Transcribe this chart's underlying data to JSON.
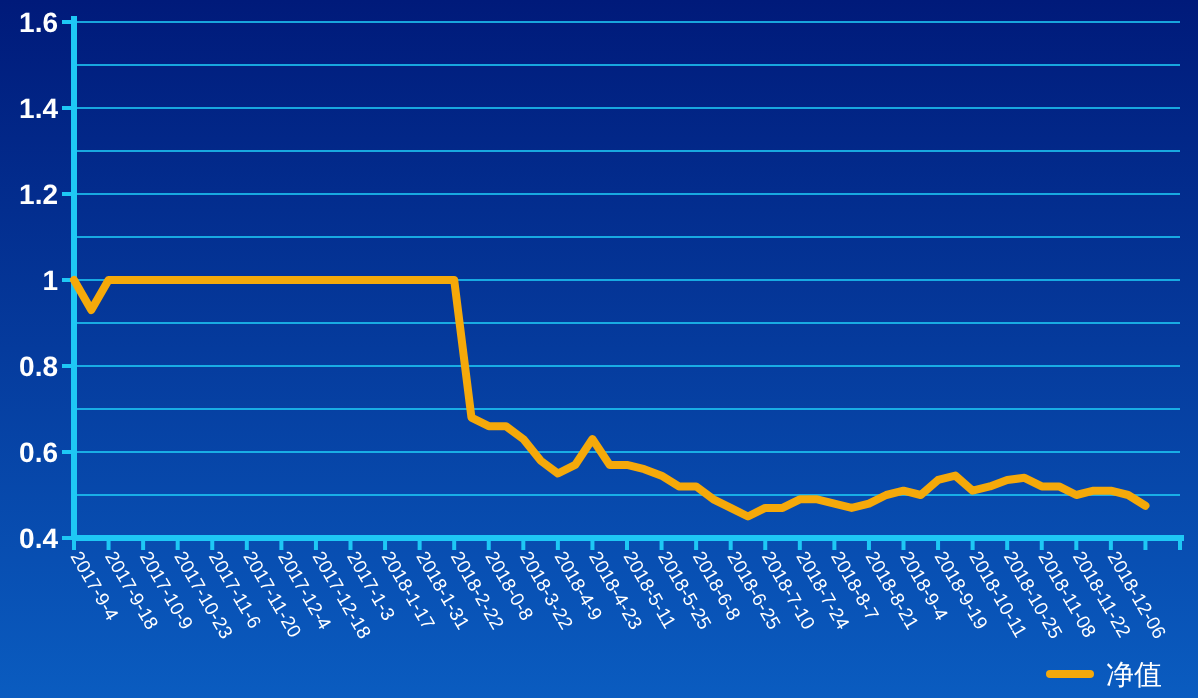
{
  "chart_data": {
    "type": "line",
    "categories": [
      "2017-9-4",
      null,
      "2017-9-18",
      null,
      "2017-10-9",
      null,
      "2017-10-23",
      null,
      "2017-11-6",
      null,
      "2017-11-20",
      null,
      "2017-12-4",
      null,
      "2017-12-18",
      null,
      "2017-1-3",
      null,
      "2018-1-17",
      null,
      "2018-1-31",
      null,
      "2018-2-22",
      null,
      "2018-0-8",
      null,
      "2018-3-22",
      null,
      "2018-4-9",
      null,
      "2018-4-23",
      null,
      "2018-5-11",
      null,
      "2018-5-25",
      null,
      "2018-6-8",
      null,
      "2018-6-25",
      null,
      "2018-7-10",
      null,
      "2018-7-24",
      null,
      "2018-8-7",
      null,
      "2018-8-21",
      null,
      "2018-9-4",
      null,
      "2018-9-19",
      null,
      "2018-10-11",
      null,
      "2018-10-25",
      null,
      "2018-11-08",
      null,
      "2018-11-22",
      null,
      "2018-12-06",
      null,
      null,
      null,
      null
    ],
    "series": [
      {
        "name": "净值",
        "color": "#f5a90a",
        "values": [
          1,
          0.93,
          1,
          1,
          1,
          1,
          1,
          1,
          1,
          1,
          1,
          1,
          1,
          1,
          1,
          1,
          1,
          1,
          1,
          1,
          1,
          1,
          1,
          0.68,
          0.66,
          0.66,
          0.63,
          0.58,
          0.55,
          0.57,
          0.63,
          0.57,
          0.57,
          0.56,
          0.545,
          0.52,
          0.52,
          0.49,
          0.47,
          0.45,
          0.47,
          0.47,
          0.49,
          0.49,
          0.48,
          0.47,
          0.48,
          0.5,
          0.51,
          0.5,
          0.535,
          0.545,
          0.51,
          0.52,
          0.535,
          0.54,
          0.52,
          0.52,
          0.5,
          0.51,
          0.51,
          0.5,
          0.475,
          null,
          null
        ]
      }
    ],
    "ylim": [
      0.4,
      1.6
    ],
    "yticks": [
      0.4,
      {
        "value": 0.5,
        "label": null
      },
      0.6,
      {
        "value": 0.7,
        "label": null
      },
      0.8,
      {
        "value": 0.9,
        "label": null
      },
      1,
      {
        "value": 1.1,
        "label": null
      },
      1.2,
      {
        "value": 1.3,
        "label": null
      },
      1.4,
      {
        "value": 1.5,
        "label": null
      },
      1.6
    ],
    "grid": "y",
    "legend": "bottom right",
    "marker": "none"
  }
}
